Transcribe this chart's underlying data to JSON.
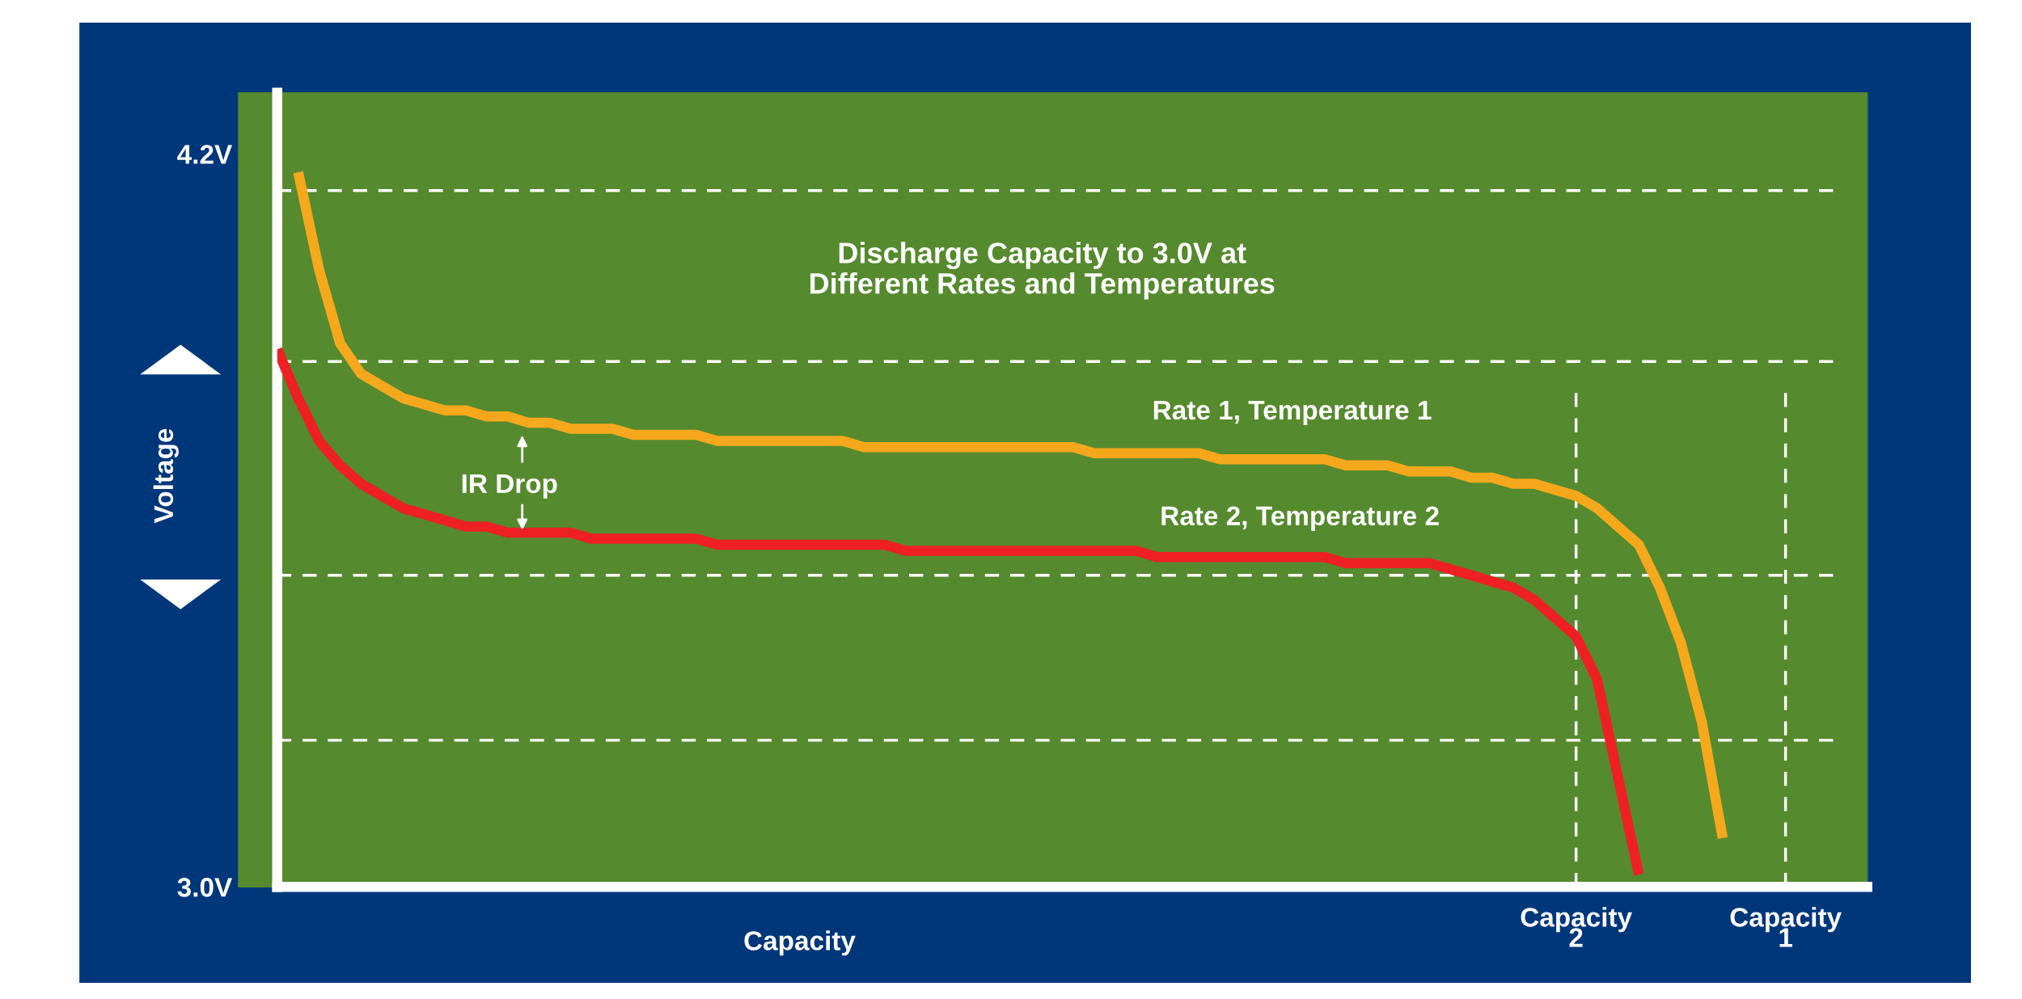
{
  "chart_data": {
    "type": "line",
    "title": "Discharge Capacity to 3.0V at\nDifferent Rates and Temperatures",
    "xlabel": "Capacity",
    "ylabel": "Voltage",
    "categories": [
      null,
      null,
      null,
      null,
      null,
      null,
      null,
      null,
      null,
      null,
      null,
      null,
      null,
      null,
      null,
      null,
      null,
      null,
      null,
      null,
      null,
      null,
      null,
      null,
      null,
      null,
      null,
      null,
      null,
      null,
      null,
      null,
      null,
      null,
      null,
      null,
      null,
      null,
      null,
      null,
      null,
      null,
      null,
      null,
      null,
      null,
      null,
      null,
      null,
      null,
      null,
      null,
      null,
      null,
      null,
      null,
      null,
      null,
      null,
      null,
      null,
      null,
      "Capacity\n2",
      null,
      null,
      null,
      null,
      null,
      null,
      null,
      null,
      null,
      "Capacity\n1",
      null,
      null,
      null
    ],
    "series": [
      {
        "name": "Rate 1, Temperature 1",
        "color": "#f5a81c",
        "values": [
          null,
          4.17,
          4.01,
          3.89,
          3.84,
          3.82,
          3.8,
          3.79,
          3.78,
          3.78,
          3.77,
          3.77,
          3.76,
          3.76,
          3.75,
          3.75,
          3.75,
          3.74,
          3.74,
          3.74,
          3.74,
          3.73,
          3.73,
          3.73,
          3.73,
          3.73,
          3.73,
          3.73,
          3.72,
          3.72,
          3.72,
          3.72,
          3.72,
          3.72,
          3.72,
          3.72,
          3.72,
          3.72,
          3.72,
          3.71,
          3.71,
          3.71,
          3.71,
          3.71,
          3.71,
          3.7,
          3.7,
          3.7,
          3.7,
          3.7,
          3.7,
          3.69,
          3.69,
          3.69,
          3.68,
          3.68,
          3.68,
          3.67,
          3.67,
          3.66,
          3.66,
          3.65,
          3.64,
          3.62,
          3.59,
          3.56,
          3.49,
          3.4,
          3.27,
          3.08,
          null,
          null,
          null,
          null,
          null,
          null
        ]
      },
      {
        "name": "Rate 2, Temperature 2",
        "color": "#ee2024",
        "values": [
          3.88,
          3.8,
          3.73,
          3.69,
          3.66,
          3.64,
          3.62,
          3.61,
          3.6,
          3.59,
          3.59,
          3.58,
          3.58,
          3.58,
          3.58,
          3.57,
          3.57,
          3.57,
          3.57,
          3.57,
          3.57,
          3.56,
          3.56,
          3.56,
          3.56,
          3.56,
          3.56,
          3.56,
          3.56,
          3.56,
          3.55,
          3.55,
          3.55,
          3.55,
          3.55,
          3.55,
          3.55,
          3.55,
          3.55,
          3.55,
          3.55,
          3.55,
          3.54,
          3.54,
          3.54,
          3.54,
          3.54,
          3.54,
          3.54,
          3.54,
          3.54,
          3.53,
          3.53,
          3.53,
          3.53,
          3.53,
          3.52,
          3.51,
          3.5,
          3.49,
          3.47,
          3.44,
          3.41,
          3.34,
          3.18,
          3.02,
          null,
          null,
          null,
          null,
          null,
          null,
          null,
          null,
          null,
          null
        ]
      }
    ],
    "annotations": [
      "IR Drop"
    ],
    "ylim": [
      3.0,
      4.3
    ],
    "yticks": [
      {
        "value": 3.0,
        "label": "3.0V"
      },
      {
        "value": 4.2,
        "label": "4.2V"
      }
    ],
    "ref_lines": [
      {
        "axis": "y",
        "value": 4.14,
        "color": "#ffffff",
        "line_style": "dashed"
      },
      {
        "axis": "y",
        "value": 3.86,
        "color": "#ffffff",
        "line_style": "dashed"
      },
      {
        "axis": "y",
        "value": 3.51,
        "color": "#ffffff",
        "line_style": "dashed"
      },
      {
        "axis": "y",
        "value": 3.24,
        "color": "#ffffff",
        "line_style": "dashed"
      },
      {
        "axis": "x",
        "value": "Capacity\n2",
        "color": "#ffffff",
        "line_style": "dashed"
      },
      {
        "axis": "x",
        "value": "Capacity\n1",
        "color": "#ffffff",
        "line_style": "dashed"
      }
    ],
    "grid": false,
    "marker": "none",
    "line_style": "solid"
  }
}
